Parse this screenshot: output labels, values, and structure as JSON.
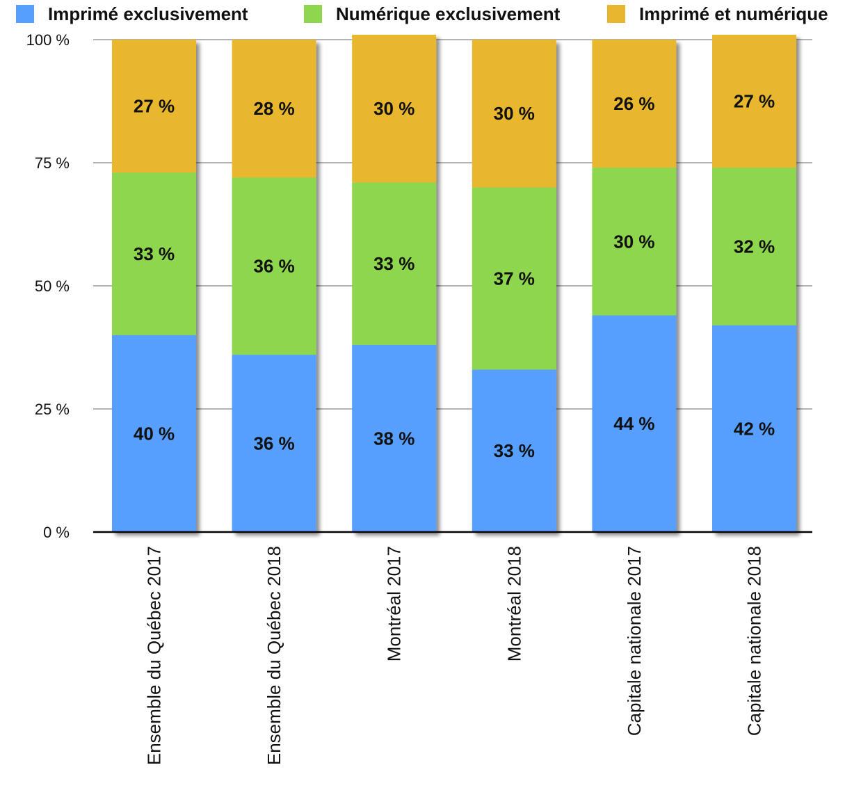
{
  "chart_data": {
    "type": "bar",
    "stacked": true,
    "categories": [
      "Ensemble du Québec 2017",
      "Ensemble du Québec 2018",
      "Montréal 2017",
      "Montréal 2018",
      "Capitale nationale 2017",
      "Capitale nationale 2018"
    ],
    "series": [
      {
        "name": "Imprimé exclusivement",
        "color": "#579FFE",
        "values": [
          40,
          36,
          38,
          33,
          44,
          42
        ],
        "labels": [
          "40 %",
          "36 %",
          "38 %",
          "33 %",
          "44 %",
          "42 %"
        ]
      },
      {
        "name": "Numérique exclusivement",
        "color": "#8DD64D",
        "values": [
          33,
          36,
          33,
          37,
          30,
          32
        ],
        "labels": [
          "33 %",
          "36 %",
          "33 %",
          "37 %",
          "30 %",
          "32 %"
        ]
      },
      {
        "name": "Imprimé et numérique",
        "color": "#E8B72F",
        "values": [
          27,
          28,
          30,
          30,
          26,
          27
        ],
        "labels": [
          "27 %",
          "28 %",
          "30 %",
          "30 %",
          "26 %",
          "27 %"
        ]
      }
    ],
    "ylim": [
      0,
      100
    ],
    "yticks": [
      0,
      25,
      50,
      75,
      100
    ],
    "ytick_labels": [
      "0 %",
      "25 %",
      "50 %",
      "75 %",
      "100 %"
    ],
    "grid": true,
    "legend_position": "top"
  }
}
